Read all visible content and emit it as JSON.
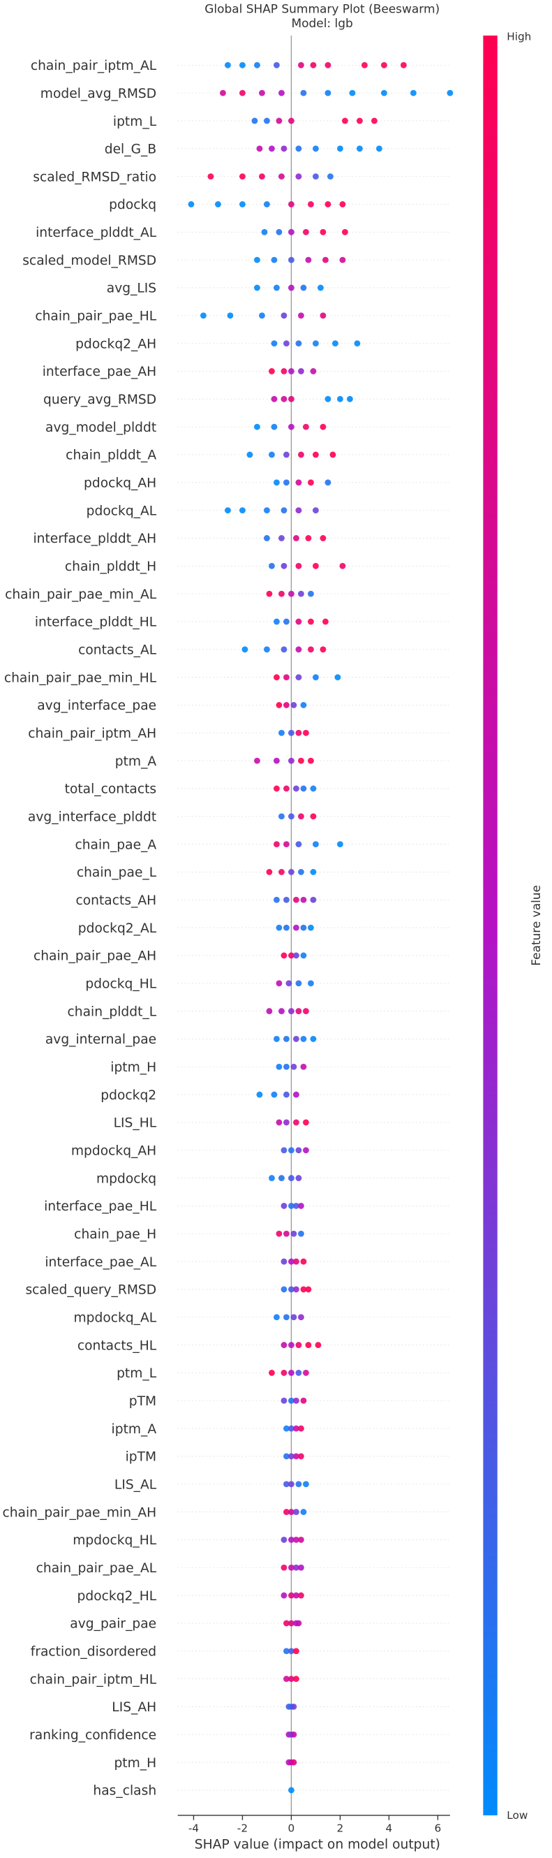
{
  "chart_data": {
    "type": "beeswarm",
    "title": "Global SHAP Summary Plot (Beeswarm)",
    "subtitle": "Model: lgb",
    "x_label": "SHAP value (impact on model output)",
    "colorbar_label": "Feature value",
    "colorbar_high": "High",
    "colorbar_low": "Low",
    "colormap": [
      "#008bfb",
      "#b512c4",
      "#ff0051"
    ],
    "xlim": [
      -4.65,
      6.5
    ],
    "xticks": [
      -4,
      -2,
      0,
      2,
      4,
      6
    ],
    "grid": true,
    "series": [
      {
        "name": "chain_pair_iptm_AL",
        "x": [
          -2.6,
          -2.0,
          -1.4,
          -0.6,
          0.4,
          0.9,
          1.5,
          3.0,
          3.8,
          4.6
        ],
        "feature_values": [
          0,
          0,
          0.05,
          0.2,
          0.8,
          0.9,
          0.9,
          1,
          1,
          1
        ]
      },
      {
        "name": "model_avg_RMSD",
        "x": [
          -2.8,
          -2,
          -1.2,
          -0.4,
          0.5,
          1.5,
          2.5,
          3.8,
          5,
          6.5
        ],
        "feature_values": [
          0.7,
          0.9,
          0.6,
          0.5,
          0.1,
          0.05,
          0,
          0,
          0,
          0
        ]
      },
      {
        "name": "iptm_L",
        "x": [
          -1.5,
          -1,
          -0.5,
          0,
          2.2,
          2.8,
          3.4
        ],
        "feature_values": [
          0.1,
          0.1,
          0.7,
          0.8,
          1,
          1,
          1
        ]
      },
      {
        "name": "del_G_B",
        "x": [
          -1.3,
          -0.8,
          -0.3,
          0.3,
          1,
          2,
          2.8,
          3.6
        ],
        "feature_values": [
          0.6,
          0.5,
          0.4,
          0.1,
          0.05,
          0,
          0,
          0
        ]
      },
      {
        "name": "scaled_RMSD_ratio",
        "x": [
          -3.3,
          -2,
          -1.2,
          -0.4,
          0.3,
          1,
          1.6
        ],
        "feature_values": [
          1,
          1,
          0.9,
          0.7,
          0.4,
          0.2,
          0.1
        ]
      },
      {
        "name": "pdockq",
        "x": [
          -4.1,
          -3,
          -2,
          -1,
          0,
          0.8,
          1.5,
          2.1
        ],
        "feature_values": [
          0,
          0,
          0,
          0.05,
          0.8,
          0.95,
          1,
          1
        ]
      },
      {
        "name": "interface_plddt_AL",
        "x": [
          -1.1,
          -0.5,
          0,
          0.6,
          1.3,
          2.2
        ],
        "feature_values": [
          0.05,
          0.1,
          0.5,
          0.9,
          1,
          1
        ]
      },
      {
        "name": "scaled_model_RMSD",
        "x": [
          -1.4,
          -0.7,
          0,
          0.7,
          1.4,
          2.1
        ],
        "feature_values": [
          0,
          0.05,
          0.2,
          0.6,
          0.8,
          0.7
        ]
      },
      {
        "name": "avg_LIS",
        "x": [
          -1.4,
          -0.6,
          0,
          0.5,
          1.2
        ],
        "feature_values": [
          0,
          0.05,
          0.5,
          0.1,
          0
        ]
      },
      {
        "name": "chain_pair_pae_HL",
        "x": [
          -3.6,
          -2.5,
          -1.2,
          -0.3,
          0.4,
          1.3
        ],
        "feature_values": [
          0,
          0,
          0.05,
          0.3,
          0.6,
          0.8
        ]
      },
      {
        "name": "pdockq2_AH",
        "x": [
          -0.7,
          -0.2,
          0.3,
          1,
          1.8,
          2.7
        ],
        "feature_values": [
          0.05,
          0.3,
          0.1,
          0.05,
          0,
          0
        ]
      },
      {
        "name": "interface_pae_AH",
        "x": [
          -0.8,
          -0.3,
          0,
          0.4,
          0.9
        ],
        "feature_values": [
          1,
          0.9,
          0.5,
          0.4,
          0.6
        ]
      },
      {
        "name": "query_avg_RMSD",
        "x": [
          -0.7,
          -0.3,
          0,
          1.5,
          2,
          2.4
        ],
        "feature_values": [
          0.6,
          0.7,
          0.8,
          0,
          0,
          0
        ]
      },
      {
        "name": "avg_model_plddt",
        "x": [
          -1.4,
          -0.7,
          0,
          0.6,
          1.3
        ],
        "feature_values": [
          0,
          0.05,
          0.5,
          0.9,
          1
        ]
      },
      {
        "name": "chain_plddt_A",
        "x": [
          -1.7,
          -0.8,
          -0.2,
          0.4,
          1,
          1.7
        ],
        "feature_values": [
          0,
          0.05,
          0.3,
          0.9,
          1,
          1
        ]
      },
      {
        "name": "pdockq_AH",
        "x": [
          -0.6,
          -0.2,
          0.3,
          0.8,
          1.5
        ],
        "feature_values": [
          0,
          0.1,
          0.7,
          1,
          0.1
        ]
      },
      {
        "name": "pdockq_AL",
        "x": [
          -2.6,
          -2,
          -1,
          -0.3,
          0.3,
          1
        ],
        "feature_values": [
          0,
          0,
          0.05,
          0.1,
          0.4,
          0.3
        ]
      },
      {
        "name": "interface_plddt_AH",
        "x": [
          -1,
          -0.4,
          0.2,
          0.7,
          1.3
        ],
        "feature_values": [
          0.1,
          0.3,
          0.8,
          1,
          1
        ]
      },
      {
        "name": "chain_plddt_H",
        "x": [
          -0.8,
          -0.3,
          0.3,
          1,
          2.1
        ],
        "feature_values": [
          0.1,
          0.3,
          0.9,
          1,
          0.9
        ]
      },
      {
        "name": "chain_pair_pae_min_AL",
        "x": [
          -0.9,
          -0.4,
          0,
          0.4,
          0.8
        ],
        "feature_values": [
          1,
          0.9,
          0.6,
          0.3,
          0.1
        ]
      },
      {
        "name": "interface_plddt_HL",
        "x": [
          -0.6,
          -0.2,
          0.3,
          0.8,
          1.4
        ],
        "feature_values": [
          0.05,
          0.1,
          0.8,
          1,
          1
        ]
      },
      {
        "name": "contacts_AL",
        "x": [
          -1.9,
          -1,
          -0.3,
          0.3,
          0.8,
          1.3
        ],
        "feature_values": [
          0,
          0.05,
          0.2,
          0.6,
          0.9,
          1
        ]
      },
      {
        "name": "chain_pair_pae_min_HL",
        "x": [
          -0.6,
          -0.2,
          0.3,
          1,
          1.9
        ],
        "feature_values": [
          1,
          0.8,
          0.3,
          0.05,
          0
        ]
      },
      {
        "name": "avg_interface_pae",
        "x": [
          -0.5,
          -0.2,
          0.1,
          0.5
        ],
        "feature_values": [
          1,
          0.8,
          0.3,
          0.05
        ]
      },
      {
        "name": "chain_pair_iptm_AH",
        "x": [
          -0.4,
          0,
          0.3,
          0.6
        ],
        "feature_values": [
          0.05,
          0.2,
          0.9,
          1
        ]
      },
      {
        "name": "ptm_A",
        "x": [
          -1.4,
          -0.6,
          0,
          0.4,
          0.8
        ],
        "feature_values": [
          0.6,
          0.5,
          0.4,
          1,
          1
        ]
      },
      {
        "name": "total_contacts",
        "x": [
          -0.6,
          -0.2,
          0.2,
          0.5,
          0.9
        ],
        "feature_values": [
          1,
          0.9,
          0.3,
          0.1,
          0.05
        ]
      },
      {
        "name": "avg_interface_plddt",
        "x": [
          -0.4,
          0,
          0.4,
          0.9
        ],
        "feature_values": [
          0.1,
          0.2,
          0.9,
          1
        ]
      },
      {
        "name": "chain_pae_A",
        "x": [
          -0.6,
          -0.2,
          0.3,
          1,
          2
        ],
        "feature_values": [
          0.9,
          0.7,
          0.2,
          0.05,
          0
        ]
      },
      {
        "name": "chain_pae_L",
        "x": [
          -0.9,
          -0.4,
          0,
          0.4,
          0.9
        ],
        "feature_values": [
          1,
          0.9,
          0.3,
          0.1,
          0
        ]
      },
      {
        "name": "contacts_AH",
        "x": [
          -0.6,
          -0.2,
          0.2,
          0.5,
          0.9
        ],
        "feature_values": [
          0.1,
          0.2,
          0.8,
          0.6,
          0.3
        ]
      },
      {
        "name": "pdockq2_AL",
        "x": [
          -0.5,
          -0.2,
          0.2,
          0.5,
          0.8
        ],
        "feature_values": [
          0.05,
          0.1,
          0.5,
          0.1,
          0
        ]
      },
      {
        "name": "chain_pair_pae_AH",
        "x": [
          -0.3,
          0,
          0.2,
          0.5
        ],
        "feature_values": [
          1,
          0.9,
          0.3,
          0.05
        ]
      },
      {
        "name": "pdockq_HL",
        "x": [
          -0.5,
          -0.1,
          0.3,
          0.8
        ],
        "feature_values": [
          0.6,
          0.3,
          0.1,
          0.05
        ]
      },
      {
        "name": "chain_plddt_L",
        "x": [
          -0.9,
          -0.4,
          0,
          0.3,
          0.6
        ],
        "feature_values": [
          0.6,
          0.5,
          0.4,
          0.8,
          0.9
        ]
      },
      {
        "name": "avg_internal_pae",
        "x": [
          -0.6,
          -0.2,
          0.2,
          0.5,
          0.9
        ],
        "feature_values": [
          0.05,
          0.1,
          0.3,
          0.05,
          0
        ]
      },
      {
        "name": "iptm_H",
        "x": [
          -0.5,
          -0.2,
          0.1,
          0.5
        ],
        "feature_values": [
          0.05,
          0.1,
          0.3,
          0.6
        ]
      },
      {
        "name": "pdockq2",
        "x": [
          -1.3,
          -0.7,
          -0.2,
          0.2
        ],
        "feature_values": [
          0,
          0.05,
          0.2,
          0.5
        ]
      },
      {
        "name": "LIS_HL",
        "x": [
          -0.5,
          -0.2,
          0.2,
          0.6
        ],
        "feature_values": [
          0.6,
          0.4,
          0.9,
          1
        ]
      },
      {
        "name": "mpdockq_AH",
        "x": [
          -0.3,
          0,
          0.3,
          0.6
        ],
        "feature_values": [
          0.2,
          0.1,
          0.3,
          0.5
        ]
      },
      {
        "name": "mpdockq",
        "x": [
          -0.8,
          -0.4,
          0,
          0.3
        ],
        "feature_values": [
          0.05,
          0.1,
          0.2,
          0.3
        ]
      },
      {
        "name": "interface_pae_HL",
        "x": [
          -0.3,
          0,
          0.2,
          0.4
        ],
        "feature_values": [
          0.3,
          0.1,
          0.2,
          0.5
        ]
      },
      {
        "name": "chain_pae_H",
        "x": [
          -0.5,
          -0.2,
          0.1,
          0.4
        ],
        "feature_values": [
          0.9,
          0.7,
          0.3,
          0.1
        ]
      },
      {
        "name": "interface_pae_AL",
        "x": [
          -0.3,
          0,
          0.2,
          0.5
        ],
        "feature_values": [
          0.3,
          0.5,
          0.8,
          1
        ]
      },
      {
        "name": "scaled_query_RMSD",
        "x": [
          -0.3,
          0,
          0.2,
          0.5,
          0.7
        ],
        "feature_values": [
          0.1,
          0.2,
          0.4,
          1,
          1
        ]
      },
      {
        "name": "mpdockq_AL",
        "x": [
          -0.6,
          -0.2,
          0.1,
          0.4
        ],
        "feature_values": [
          0.05,
          0.1,
          0.3,
          0.4
        ]
      },
      {
        "name": "contacts_HL",
        "x": [
          -0.3,
          0,
          0.3,
          0.7,
          1.1
        ],
        "feature_values": [
          0.6,
          0.5,
          0.9,
          1,
          1
        ]
      },
      {
        "name": "ptm_L",
        "x": [
          -0.8,
          -0.3,
          0,
          0.3,
          0.6
        ],
        "feature_values": [
          1,
          0.9,
          0.5,
          0.2,
          0.7
        ]
      },
      {
        "name": "pTM",
        "x": [
          -0.3,
          0,
          0.2,
          0.5
        ],
        "feature_values": [
          0.3,
          0.1,
          0.4,
          0.8
        ]
      },
      {
        "name": "iptm_A",
        "x": [
          -0.2,
          0,
          0.2,
          0.4
        ],
        "feature_values": [
          0.05,
          0.2,
          0.6,
          0.9
        ]
      },
      {
        "name": "ipTM",
        "x": [
          -0.2,
          0,
          0.2,
          0.4
        ],
        "feature_values": [
          0.1,
          0.3,
          0.6,
          0.9
        ]
      },
      {
        "name": "LIS_AL",
        "x": [
          -0.2,
          0,
          0.3,
          0.6
        ],
        "feature_values": [
          0.2,
          0.3,
          0.1,
          0.05
        ]
      },
      {
        "name": "chain_pair_pae_min_AH",
        "x": [
          -0.2,
          0,
          0.2,
          0.5
        ],
        "feature_values": [
          0.9,
          0.7,
          0.3,
          0.05
        ]
      },
      {
        "name": "mpdockq_HL",
        "x": [
          -0.3,
          0,
          0.2,
          0.4
        ],
        "feature_values": [
          0.3,
          0.5,
          0.6,
          0.7
        ]
      },
      {
        "name": "chain_pair_pae_AL",
        "x": [
          -0.3,
          0,
          0.2,
          0.4
        ],
        "feature_values": [
          0.9,
          0.6,
          0.4,
          0.5
        ]
      },
      {
        "name": "pdockq2_HL",
        "x": [
          -0.3,
          0,
          0.2,
          0.4
        ],
        "feature_values": [
          0.5,
          0.8,
          0.6,
          0.9
        ]
      },
      {
        "name": "avg_pair_pae",
        "x": [
          -0.2,
          0,
          0.2,
          0.3
        ],
        "feature_values": [
          0.9,
          0.8,
          0.5,
          0.6
        ]
      },
      {
        "name": "fraction_disordered",
        "x": [
          -0.2,
          0,
          0.2
        ],
        "feature_values": [
          0.1,
          0.2,
          1
        ]
      },
      {
        "name": "chain_pair_iptm_HL",
        "x": [
          -0.2,
          0,
          0.2
        ],
        "feature_values": [
          0.7,
          0.8,
          1
        ]
      },
      {
        "name": "LIS_AH",
        "x": [
          -0.1,
          0,
          0.1
        ],
        "feature_values": [
          0.2,
          0.1,
          0.3
        ]
      },
      {
        "name": "ranking_confidence",
        "x": [
          -0.1,
          0,
          0.1
        ],
        "feature_values": [
          0.5,
          0.3,
          0.6
        ]
      },
      {
        "name": "ptm_H",
        "x": [
          -0.1,
          0,
          0.1
        ],
        "feature_values": [
          0.5,
          0.6,
          0.8
        ]
      },
      {
        "name": "has_clash",
        "x": [
          0
        ],
        "feature_values": [
          0
        ]
      }
    ]
  }
}
